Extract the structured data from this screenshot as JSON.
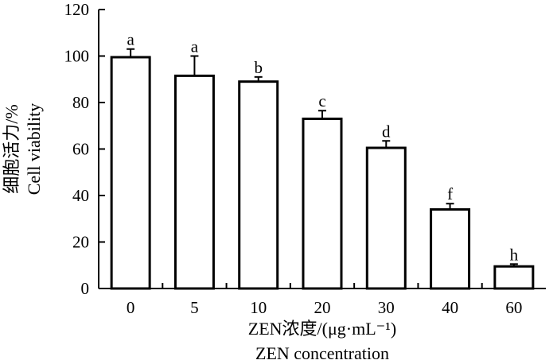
{
  "chart_data": {
    "type": "bar",
    "categories": [
      "0",
      "5",
      "10",
      "20",
      "30",
      "40",
      "60"
    ],
    "values": [
      99.5,
      91.5,
      89.0,
      73.0,
      60.5,
      34.0,
      9.5
    ],
    "error_upper": [
      3.5,
      8.5,
      2.0,
      3.5,
      3.0,
      2.5,
      1.0
    ],
    "significance_labels": [
      "a",
      "a",
      "b",
      "c",
      "d",
      "f",
      "h"
    ],
    "ylim": [
      0,
      120
    ],
    "yticks": [
      0,
      20,
      40,
      60,
      80,
      100,
      120
    ],
    "xlabel_line1": "ZEN浓度/(μg·mL⁻¹)",
    "xlabel_line2": "ZEN concentration",
    "ylabel_line1": "细胞活力/%",
    "ylabel_line2": "Cell viability",
    "grid": false,
    "bar_fill": "#ffffff",
    "bar_stroke": "#000000"
  }
}
